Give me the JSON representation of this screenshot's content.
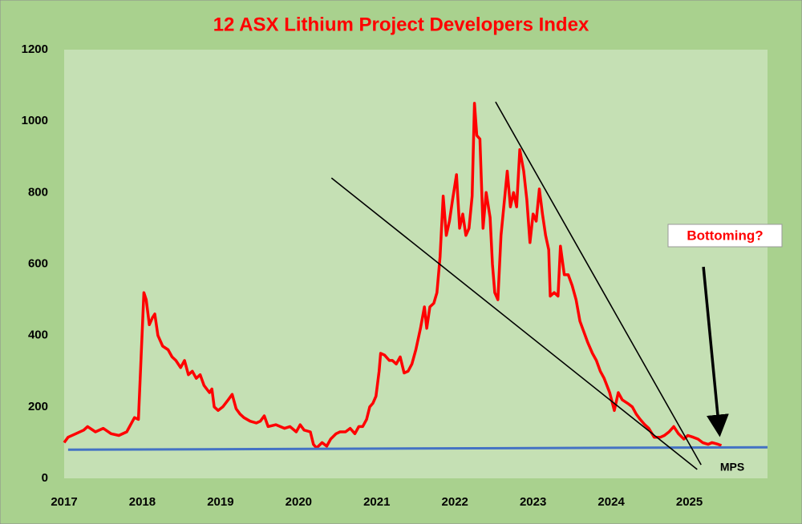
{
  "chart_data": {
    "type": "line",
    "title": "12 ASX Lithium Project Developers Index",
    "xlim": [
      2017,
      2026
    ],
    "xticks": [
      2017,
      2018,
      2019,
      2020,
      2021,
      2022,
      2023,
      2024,
      2025
    ],
    "ylim": [
      0,
      1200
    ],
    "yticks": [
      0,
      200,
      400,
      600,
      800,
      1000,
      1200
    ],
    "series": [
      {
        "color": "#ff0000",
        "x": [
          2017.0,
          2017.05,
          2017.15,
          2017.25,
          2017.3,
          2017.4,
          2017.5,
          2017.6,
          2017.7,
          2017.8,
          2017.9,
          2017.95,
          2018.02,
          2018.05,
          2018.09,
          2018.13,
          2018.16,
          2018.2,
          2018.26,
          2018.33,
          2018.38,
          2018.43,
          2018.49,
          2018.54,
          2018.59,
          2018.64,
          2018.69,
          2018.74,
          2018.79,
          2018.86,
          2018.89,
          2018.92,
          2018.97,
          2019.03,
          2019.1,
          2019.15,
          2019.2,
          2019.25,
          2019.3,
          2019.38,
          2019.46,
          2019.51,
          2019.56,
          2019.61,
          2019.71,
          2019.82,
          2019.89,
          2019.97,
          2020.02,
          2020.07,
          2020.15,
          2020.19,
          2020.23,
          2020.3,
          2020.36,
          2020.41,
          2020.48,
          2020.53,
          2020.6,
          2020.66,
          2020.72,
          2020.77,
          2020.82,
          2020.87,
          2020.91,
          2020.95,
          2020.99,
          2021.03,
          2021.05,
          2021.1,
          2021.16,
          2021.2,
          2021.25,
          2021.3,
          2021.35,
          2021.4,
          2021.45,
          2021.5,
          2021.56,
          2021.61,
          2021.64,
          2021.68,
          2021.73,
          2021.77,
          2021.81,
          2021.85,
          2021.89,
          2021.93,
          2021.97,
          2022.02,
          2022.06,
          2022.1,
          2022.14,
          2022.18,
          2022.22,
          2022.25,
          2022.28,
          2022.32,
          2022.36,
          2022.4,
          2022.45,
          2022.48,
          2022.51,
          2022.55,
          2022.59,
          2022.63,
          2022.67,
          2022.71,
          2022.75,
          2022.79,
          2022.83,
          2022.88,
          2022.92,
          2022.96,
          2023.0,
          2023.04,
          2023.08,
          2023.12,
          2023.16,
          2023.2,
          2023.22,
          2023.27,
          2023.32,
          2023.35,
          2023.4,
          2023.45,
          2023.5,
          2023.55,
          2023.6,
          2023.65,
          2023.7,
          2023.76,
          2023.81,
          2023.86,
          2023.91,
          2023.98,
          2024.04,
          2024.09,
          2024.14,
          2024.21,
          2024.27,
          2024.32,
          2024.37,
          2024.43,
          2024.48,
          2024.55,
          2024.63,
          2024.68,
          2024.74,
          2024.8,
          2024.86,
          2024.93,
          2024.98,
          2025.05,
          2025.11,
          2025.17,
          2025.24,
          2025.29,
          2025.37,
          2025.41
        ],
        "values": [
          100,
          115,
          125,
          135,
          145,
          130,
          140,
          125,
          120,
          130,
          170,
          165,
          520,
          500,
          430,
          450,
          460,
          400,
          370,
          360,
          340,
          330,
          310,
          330,
          290,
          300,
          280,
          290,
          260,
          240,
          250,
          200,
          190,
          200,
          220,
          235,
          195,
          180,
          170,
          160,
          155,
          160,
          175,
          145,
          150,
          140,
          145,
          130,
          150,
          135,
          130,
          95,
          85,
          100,
          90,
          110,
          125,
          130,
          130,
          140,
          125,
          145,
          145,
          165,
          200,
          210,
          230,
          300,
          350,
          345,
          330,
          330,
          320,
          340,
          295,
          300,
          320,
          360,
          420,
          480,
          420,
          480,
          490,
          520,
          620,
          790,
          680,
          720,
          780,
          850,
          700,
          740,
          680,
          700,
          790,
          1050,
          960,
          950,
          700,
          800,
          730,
          600,
          520,
          500,
          680,
          770,
          860,
          760,
          800,
          760,
          920,
          860,
          780,
          660,
          740,
          720,
          810,
          740,
          680,
          640,
          510,
          520,
          510,
          650,
          570,
          570,
          540,
          500,
          440,
          410,
          380,
          350,
          330,
          300,
          280,
          240,
          190,
          240,
          220,
          210,
          200,
          180,
          165,
          150,
          140,
          115,
          115,
          120,
          130,
          145,
          125,
          110,
          120,
          115,
          110,
          100,
          95,
          100,
          95,
          92
        ]
      },
      {
        "color": "#4472c4",
        "x": [
          2017.05,
          2026.0
        ],
        "values": [
          80,
          87
        ]
      },
      {
        "color": "#000000",
        "x": [
          2020.42,
          2025.1
        ],
        "values": [
          841,
          25
        ]
      },
      {
        "color": "#000000",
        "x": [
          2022.52,
          2025.15
        ],
        "values": [
          1054,
          38
        ]
      }
    ],
    "annotations": [
      {
        "text": "Bottoming?",
        "color": "#ff0000"
      },
      {
        "text": "MPS"
      }
    ],
    "arrow": {
      "x": [
        2025.18,
        2025.38
      ],
      "values": [
        592,
        139
      ]
    }
  }
}
